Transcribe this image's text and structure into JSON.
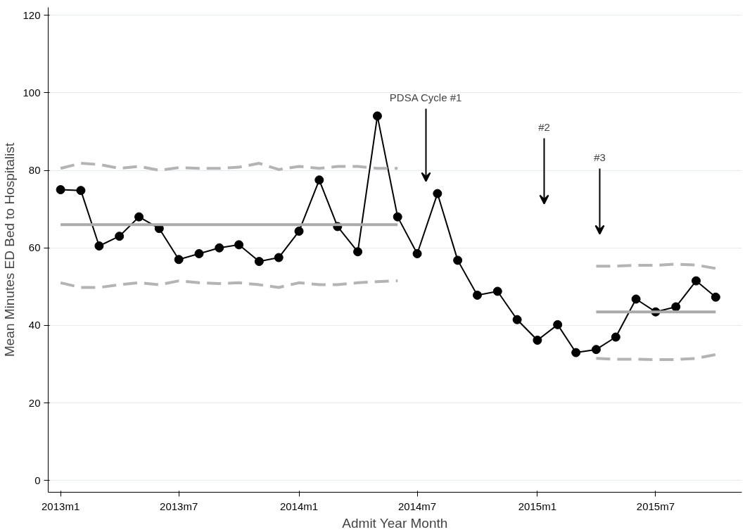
{
  "chart_data": {
    "type": "line",
    "xlabel": "Admit Year Month",
    "ylabel": "Mean Minutes ED Bed to Hospitalist",
    "ylim": [
      -3,
      122
    ],
    "yticks": [
      0,
      20,
      40,
      60,
      80,
      100,
      120
    ],
    "grid": "y",
    "xlim": [
      "2012-12-13",
      "2015-11-10"
    ],
    "xticks": [
      {
        "value": "2013-01",
        "label": "2013m1"
      },
      {
        "value": "2013-07",
        "label": "2013m7"
      },
      {
        "value": "2014-01",
        "label": "2014m1"
      },
      {
        "value": "2014-07",
        "label": "2014m7"
      },
      {
        "value": "2015-01",
        "label": "2015m1"
      },
      {
        "value": "2015-07",
        "label": "2015m7"
      }
    ],
    "series": [
      {
        "color": "#000000",
        "marker": "circle",
        "line_style": "solid",
        "x": [
          "2013-01",
          "2013-02",
          "2013-03",
          "2013-04",
          "2013-05",
          "2013-06",
          "2013-07",
          "2013-08",
          "2013-09",
          "2013-10",
          "2013-11",
          "2013-12",
          "2014-01",
          "2014-02",
          "2014-03",
          "2014-04",
          "2014-05",
          "2014-06",
          "2014-07",
          "2014-08",
          "2014-09",
          "2014-10",
          "2014-11",
          "2014-12",
          "2015-01",
          "2015-02",
          "2015-03",
          "2015-04",
          "2015-05",
          "2015-06",
          "2015-07",
          "2015-08",
          "2015-09",
          "2015-10"
        ],
        "values": [
          75,
          74.8,
          60.5,
          63,
          68,
          65,
          57,
          58.5,
          60,
          60.8,
          56.5,
          57.5,
          64.3,
          77.5,
          65.5,
          59,
          94,
          68,
          58.5,
          74,
          56.8,
          47.8,
          48.8,
          41.5,
          36.2,
          40.2,
          33,
          33.8,
          37,
          46.8,
          43.5,
          44.8,
          51.5,
          47.3
        ]
      },
      {
        "color": "#aaaaaa",
        "marker": "none",
        "line_style": "solid",
        "x": [
          "2013-01",
          "2014-06"
        ],
        "values": [
          66,
          66
        ]
      },
      {
        "color": "#b4b4b4",
        "marker": "none",
        "line_style": "dashed",
        "x": [
          "2013-01",
          "2013-02",
          "2013-03",
          "2013-04",
          "2013-05",
          "2013-06",
          "2013-07",
          "2013-08",
          "2013-09",
          "2013-10",
          "2013-11",
          "2013-12",
          "2014-01",
          "2014-02",
          "2014-03",
          "2014-04",
          "2014-05",
          "2014-06"
        ],
        "values": [
          80.5,
          81.8,
          81.5,
          80.5,
          81,
          80,
          80.7,
          80.5,
          80.5,
          80.8,
          81.8,
          80.2,
          81,
          80.5,
          81,
          81,
          80.5,
          80.5
        ]
      },
      {
        "color": "#b4b4b4",
        "marker": "none",
        "line_style": "dashed",
        "x": [
          "2013-01",
          "2013-02",
          "2013-03",
          "2013-04",
          "2013-05",
          "2013-06",
          "2013-07",
          "2013-08",
          "2013-09",
          "2013-10",
          "2013-11",
          "2013-12",
          "2014-01",
          "2014-02",
          "2014-03",
          "2014-04",
          "2014-05",
          "2014-06"
        ],
        "values": [
          51,
          49.8,
          49.8,
          50.5,
          51,
          50.5,
          51.5,
          51,
          50.8,
          51,
          50.5,
          49.8,
          51,
          50.5,
          50.5,
          51,
          51.3,
          51.5
        ]
      },
      {
        "color": "#aaaaaa",
        "marker": "none",
        "line_style": "solid",
        "x": [
          "2015-04",
          "2015-10"
        ],
        "values": [
          43.5,
          43.5
        ]
      },
      {
        "color": "#b4b4b4",
        "marker": "none",
        "line_style": "dashed",
        "x": [
          "2015-04",
          "2015-05",
          "2015-06",
          "2015-07",
          "2015-08",
          "2015-09",
          "2015-10"
        ],
        "values": [
          55.3,
          55.3,
          55.5,
          55.5,
          55.8,
          55.6,
          54.7
        ]
      },
      {
        "color": "#b4b4b4",
        "marker": "none",
        "line_style": "dashed",
        "x": [
          "2015-04",
          "2015-05",
          "2015-06",
          "2015-07",
          "2015-08",
          "2015-09",
          "2015-10"
        ],
        "values": [
          31.5,
          31.3,
          31.3,
          31.2,
          31.2,
          31.5,
          32.5
        ]
      }
    ],
    "annotations": [
      "PDSA Cycle #1",
      "#2",
      "#3"
    ]
  }
}
